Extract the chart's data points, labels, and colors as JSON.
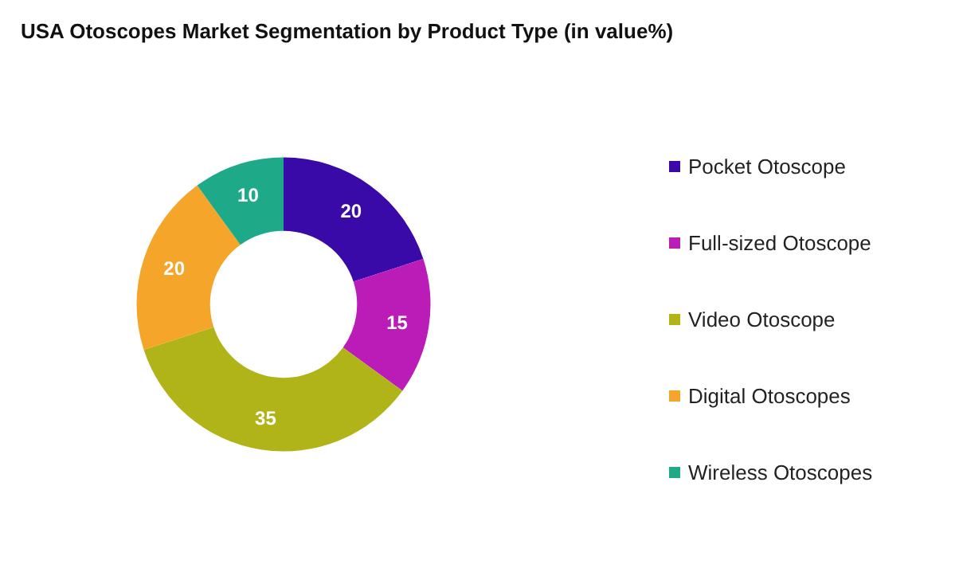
{
  "chart_data": {
    "type": "donut",
    "title": "USA Otoscopes Market Segmentation by Product Type (in value%)",
    "categories": [
      "Pocket Otoscope",
      "Full-sized Otoscope",
      "Video Otoscope",
      "Digital Otoscopes",
      "Wireless Otoscopes"
    ],
    "values": [
      20,
      15,
      35,
      20,
      10
    ],
    "colors": [
      "#3a0aa8",
      "#bb1cb8",
      "#b0b418",
      "#f5a52a",
      "#1eaa88"
    ],
    "data_labels": true,
    "legend": "right"
  }
}
